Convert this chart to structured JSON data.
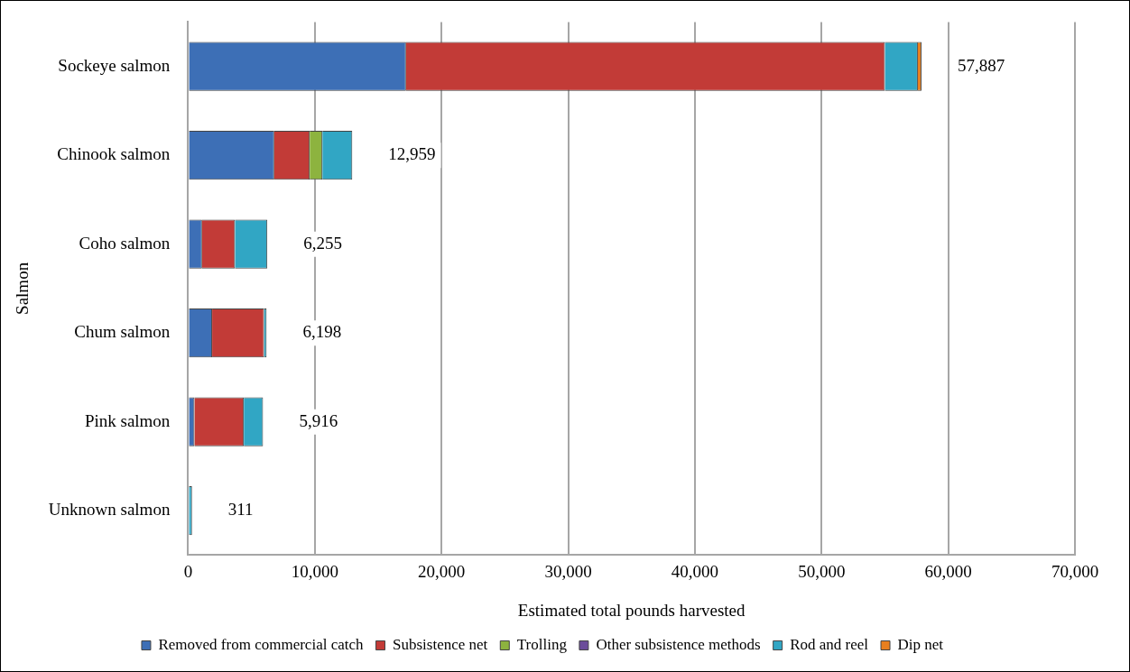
{
  "chart_data": {
    "type": "bar",
    "orientation": "horizontal",
    "stacked": true,
    "xlabel": "Estimated total pounds harvested",
    "ylabel": "Salmon",
    "categories": [
      "Sockeye salmon",
      "Chinook salmon",
      "Coho salmon",
      "Chum salmon",
      "Pink salmon",
      "Unknown salmon"
    ],
    "series": [
      {
        "name": "Removed from commercial catch",
        "color": "#3d6fb6",
        "values": [
          17200,
          6800,
          1100,
          1900,
          500,
          0
        ]
      },
      {
        "name": "Subsistence net",
        "color": "#c23b37",
        "values": [
          37800,
          2800,
          2600,
          4100,
          3900,
          0
        ]
      },
      {
        "name": "Trolling",
        "color": "#8db33f",
        "values": [
          0,
          1000,
          0,
          0,
          0,
          0
        ]
      },
      {
        "name": "Other subsistence methods",
        "color": "#6b4c9a",
        "values": [
          0,
          0,
          0,
          0,
          0,
          0
        ]
      },
      {
        "name": "Rod and reel",
        "color": "#31a6c4",
        "values": [
          2600,
          2359,
          2555,
          198,
          1516,
          311
        ]
      },
      {
        "name": "Dip net",
        "color": "#e87f1e",
        "values": [
          287,
          0,
          0,
          0,
          0,
          0
        ]
      }
    ],
    "totals": [
      "57,887",
      "12,959",
      "6,255",
      "6,198",
      "5,916",
      "311"
    ],
    "xlim": [
      0,
      70000
    ],
    "xticks": [
      {
        "value": 0,
        "label": "0"
      },
      {
        "value": 10000,
        "label": "10,000"
      },
      {
        "value": 20000,
        "label": "20,000"
      },
      {
        "value": 30000,
        "label": "30,000"
      },
      {
        "value": 40000,
        "label": "40,000"
      },
      {
        "value": 50000,
        "label": "50,000"
      },
      {
        "value": 60000,
        "label": "60,000"
      },
      {
        "value": 70000,
        "label": "70,000"
      }
    ],
    "grid": "x",
    "legend": "bottom"
  }
}
